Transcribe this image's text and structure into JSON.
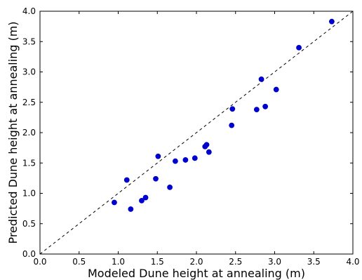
{
  "chart_data": {
    "type": "scatter",
    "title": "",
    "xlabel": "Modeled Dune height at annealing (m)",
    "ylabel": "Predicted Dune height at annealing (m)",
    "xlim": [
      0.0,
      4.0
    ],
    "ylim": [
      0.0,
      4.0
    ],
    "xticks": [
      "0.0",
      "0.5",
      "1.0",
      "1.5",
      "2.0",
      "2.5",
      "3.0",
      "3.5",
      "4.0"
    ],
    "yticks": [
      "0.0",
      "0.5",
      "1.0",
      "1.5",
      "2.0",
      "2.5",
      "3.0",
      "3.5",
      "4.0"
    ],
    "grid": false,
    "marker_color": "#0000cc",
    "reference_line": {
      "style": "dashed",
      "from": [
        0.0,
        0.0
      ],
      "to": [
        4.0,
        4.0
      ],
      "color": "#000000"
    },
    "points": [
      {
        "x": 0.95,
        "y": 0.85
      },
      {
        "x": 1.11,
        "y": 1.22
      },
      {
        "x": 1.16,
        "y": 0.74
      },
      {
        "x": 1.3,
        "y": 0.88
      },
      {
        "x": 1.35,
        "y": 0.93
      },
      {
        "x": 1.48,
        "y": 1.24
      },
      {
        "x": 1.51,
        "y": 1.61
      },
      {
        "x": 1.66,
        "y": 1.1
      },
      {
        "x": 1.73,
        "y": 1.53
      },
      {
        "x": 1.86,
        "y": 1.55
      },
      {
        "x": 1.98,
        "y": 1.58
      },
      {
        "x": 2.11,
        "y": 1.77
      },
      {
        "x": 2.13,
        "y": 1.8
      },
      {
        "x": 2.16,
        "y": 1.68
      },
      {
        "x": 2.45,
        "y": 2.12
      },
      {
        "x": 2.46,
        "y": 2.39
      },
      {
        "x": 2.77,
        "y": 2.38
      },
      {
        "x": 2.83,
        "y": 2.88
      },
      {
        "x": 2.88,
        "y": 2.43
      },
      {
        "x": 3.02,
        "y": 2.71
      },
      {
        "x": 3.31,
        "y": 3.4
      },
      {
        "x": 3.73,
        "y": 3.83
      }
    ]
  }
}
